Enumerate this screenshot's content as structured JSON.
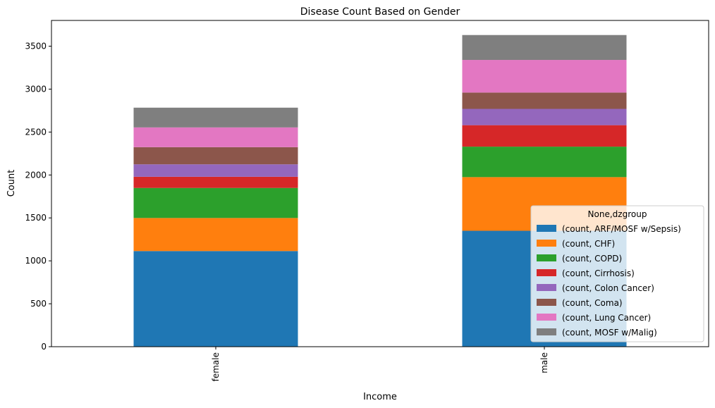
{
  "chart_data": {
    "type": "bar",
    "stacked": true,
    "title": "Disease Count Based on Gender",
    "xlabel": "Income",
    "ylabel": "Count",
    "categories": [
      "female",
      "male"
    ],
    "ylim": [
      0,
      3800
    ],
    "yticks": [
      0,
      500,
      1000,
      1500,
      2000,
      2500,
      3000,
      3500
    ],
    "grid": false,
    "legend_title": "None,dzgroup",
    "legend_position": "lower-right",
    "series": [
      {
        "name": "(count, ARF/MOSF w/Sepsis)",
        "values": [
          1114,
          1350
        ],
        "color": "#1f77b4"
      },
      {
        "name": "(count, CHF)",
        "values": [
          385,
          625
        ],
        "color": "#ff7f0e"
      },
      {
        "name": "(count, COPD)",
        "values": [
          350,
          355
        ],
        "color": "#2ca02c"
      },
      {
        "name": "(count, Cirrhosis)",
        "values": [
          130,
          250
        ],
        "color": "#d62728"
      },
      {
        "name": "(count, Colon Cancer)",
        "values": [
          145,
          190
        ],
        "color": "#9467bd"
      },
      {
        "name": "(count, Coma)",
        "values": [
          200,
          190
        ],
        "color": "#8c564b"
      },
      {
        "name": "(count, Lung Cancer)",
        "values": [
          230,
          380
        ],
        "color": "#e377c2"
      },
      {
        "name": "(count, MOSF w/Malig)",
        "values": [
          230,
          290
        ],
        "color": "#7f7f7f"
      }
    ]
  }
}
